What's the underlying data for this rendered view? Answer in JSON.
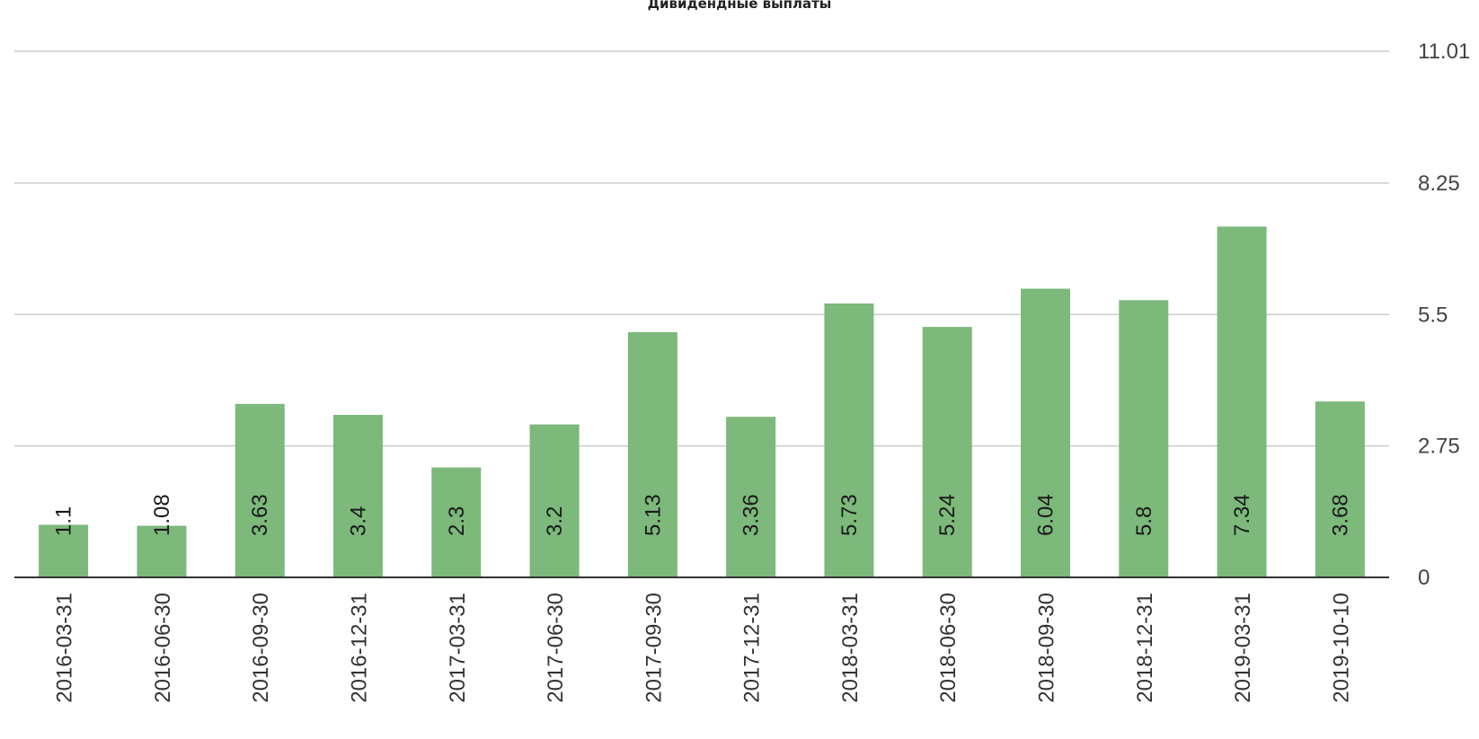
{
  "chart_data": {
    "type": "bar",
    "title": "Дивидендные выплаты",
    "xlabel": "",
    "ylabel": "",
    "categories": [
      "2016-03-31",
      "2016-06-30",
      "2016-09-30",
      "2016-12-31",
      "2017-03-31",
      "2017-06-30",
      "2017-09-30",
      "2017-12-31",
      "2018-03-31",
      "2018-06-30",
      "2018-09-30",
      "2018-12-31",
      "2019-03-31",
      "2019-10-10"
    ],
    "values": [
      1.1,
      1.08,
      3.63,
      3.4,
      2.3,
      3.2,
      5.13,
      3.36,
      5.73,
      5.24,
      6.04,
      5.8,
      7.34,
      3.68
    ],
    "ylim": [
      0,
      11.01
    ],
    "yticks": [
      "0",
      "2.75",
      "5.5",
      "8.25",
      "11.01"
    ],
    "yaxis_position": "right",
    "grid": true,
    "legend": "none",
    "bar_color": "#7cb97b"
  }
}
